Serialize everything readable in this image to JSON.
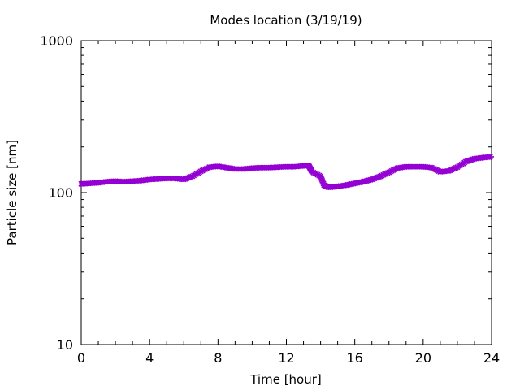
{
  "chart_data": {
    "type": "line",
    "title": "Modes location (3/19/19)",
    "xlabel": "Time [hour]",
    "ylabel": "Particle size [nm]",
    "xlim": [
      0,
      24
    ],
    "ylim": [
      10,
      1000
    ],
    "yscale": "log",
    "grid": false,
    "xticks": [
      0,
      4,
      8,
      12,
      16,
      20,
      24
    ],
    "xtick_labels": [
      "0",
      "4",
      "8",
      "12",
      "16",
      "20",
      "24"
    ],
    "yticks": [
      10,
      100,
      1000
    ],
    "ytick_labels": [
      "10",
      "100",
      "1000"
    ],
    "series": [
      {
        "color": "#9400d3",
        "marker": "plus-cross",
        "x": [
          0,
          0.5,
          1,
          1.5,
          2,
          2.5,
          3,
          3.5,
          4,
          4.5,
          5,
          5.5,
          6,
          6.5,
          7,
          7.5,
          8,
          8.5,
          9,
          9.5,
          10,
          10.5,
          11,
          11.5,
          12,
          12.5,
          13,
          13.3,
          13.5,
          14,
          14.2,
          14.5,
          15,
          15.5,
          16,
          16.5,
          17,
          17.5,
          18,
          18.5,
          19,
          19.5,
          20,
          20.5,
          21,
          21.5,
          22,
          22.5,
          23,
          23.5,
          24
        ],
        "y": [
          114,
          115,
          116,
          118,
          119,
          118,
          119,
          120,
          122,
          123,
          124,
          124,
          122,
          128,
          138,
          147,
          149,
          146,
          143,
          143,
          145,
          146,
          146,
          147,
          148,
          148,
          150,
          151,
          137,
          128,
          112,
          108,
          110,
          112,
          115,
          118,
          122,
          128,
          136,
          145,
          148,
          148,
          148,
          146,
          137,
          139,
          147,
          160,
          167,
          170,
          172
        ]
      }
    ]
  }
}
